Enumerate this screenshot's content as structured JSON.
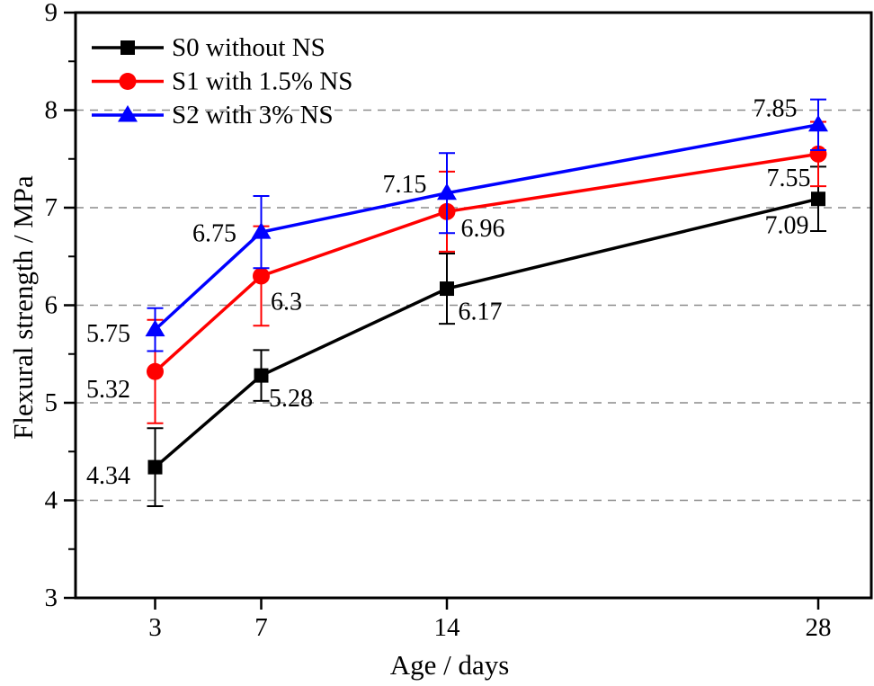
{
  "chart_data": {
    "type": "line",
    "title": "",
    "xlabel": "Age / days",
    "ylabel": "Flexural strength / MPa",
    "x": [
      3,
      7,
      14,
      28
    ],
    "xlim": [
      0,
      30
    ],
    "ylim": [
      3,
      9
    ],
    "xticks": [
      3,
      7,
      14,
      28
    ],
    "yticks": [
      3,
      4,
      5,
      6,
      7,
      8,
      9
    ],
    "y_minor_ticks": [
      3.5,
      4.5,
      5.5,
      6.5,
      7.5,
      8.5
    ],
    "grid": {
      "axis": "y",
      "values": [
        4,
        5,
        6,
        7,
        8
      ],
      "style": "dashed",
      "color": "#8c8c8c"
    },
    "legend_position": "top-left-inside",
    "series": [
      {
        "name": "S0 without NS",
        "color": "#000000",
        "marker": "square",
        "values": [
          4.34,
          5.28,
          6.17,
          7.09
        ],
        "errors": [
          0.4,
          0.26,
          0.36,
          0.33
        ],
        "labels": [
          "4.34",
          "5.28",
          "6.17",
          "7.09"
        ],
        "label_offsets": [
          [
            -52,
            10
          ],
          [
            33,
            26
          ],
          [
            37,
            26
          ],
          [
            -35,
            30
          ]
        ]
      },
      {
        "name": "S1 with 1.5% NS",
        "color": "#ff0000",
        "marker": "circle",
        "values": [
          5.32,
          6.3,
          6.96,
          7.55
        ],
        "errors": [
          0.53,
          0.51,
          0.41,
          0.33
        ],
        "labels": [
          "5.32",
          "6.3",
          "6.96",
          "7.55"
        ],
        "label_offsets": [
          [
            -52,
            20
          ],
          [
            28,
            29
          ],
          [
            40,
            19
          ],
          [
            -33,
            27
          ]
        ]
      },
      {
        "name": "S2 with 3% NS",
        "color": "#0000ff",
        "marker": "triangle",
        "values": [
          5.75,
          6.75,
          7.15,
          7.85
        ],
        "errors": [
          0.22,
          0.37,
          0.41,
          0.26
        ],
        "labels": [
          "5.75",
          "6.75",
          "7.15",
          "7.85"
        ],
        "label_offsets": [
          [
            -52,
            5
          ],
          [
            -52,
            2
          ],
          [
            -47,
            -9
          ],
          [
            -48,
            -18
          ]
        ]
      }
    ]
  }
}
